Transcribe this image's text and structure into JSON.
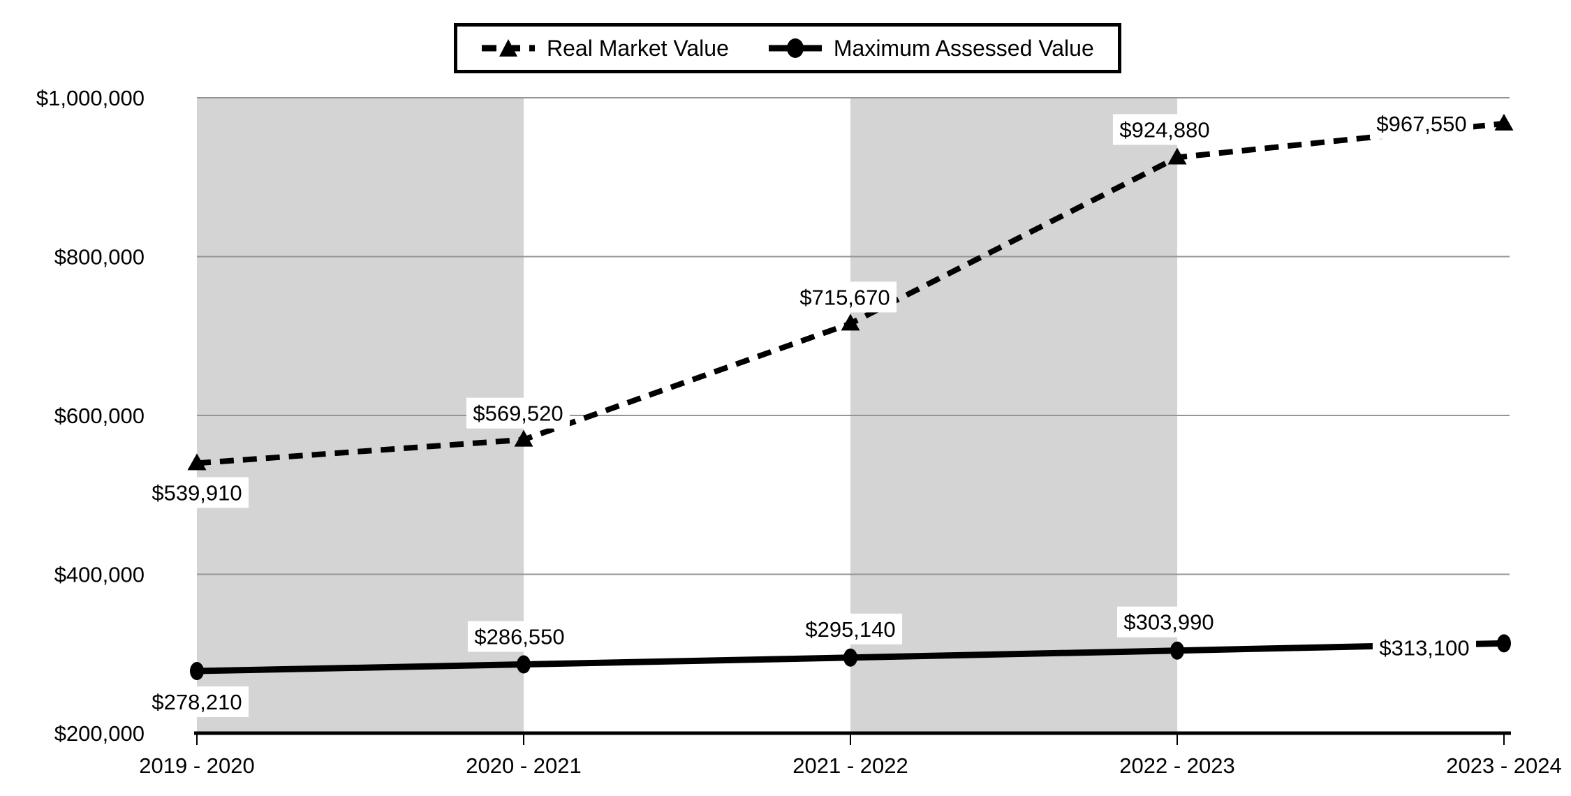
{
  "chart_data": {
    "type": "line",
    "title": "",
    "categories": [
      "2019 - 2020",
      "2020 - 2021",
      "2021 - 2022",
      "2022 - 2023",
      "2023 - 2024"
    ],
    "series": [
      {
        "name": "Real Market Value",
        "values": [
          539910,
          569520,
          715670,
          924880,
          967550
        ],
        "data_labels": [
          "$539,910",
          "$569,520",
          "$715,670",
          "$924,880",
          "$967,550"
        ],
        "line_style": "dashed",
        "marker": "triangle"
      },
      {
        "name": "Maximum Assessed Value",
        "values": [
          278210,
          286550,
          295140,
          303990,
          313100
        ],
        "data_labels": [
          "$278,210",
          "$286,550",
          "$295,140",
          "$303,990",
          "$313,100"
        ],
        "line_style": "solid",
        "marker": "circle"
      }
    ],
    "y_axis": {
      "min": 200000,
      "max": 1000000,
      "step": 200000,
      "tick_labels": [
        "$200,000",
        "$400,000",
        "$600,000",
        "$800,000",
        "$1,000,000"
      ]
    },
    "grid": true,
    "legend_position": "top",
    "plot_band_columns": [
      0,
      2
    ],
    "colors": {
      "series_line": "#000000",
      "plot_band": "#d4d4d4",
      "gridline": "#949494",
      "axis_line": "#000000",
      "background": "#ffffff",
      "data_label_bg": "#ffffff",
      "data_label_text": "#000000"
    }
  }
}
